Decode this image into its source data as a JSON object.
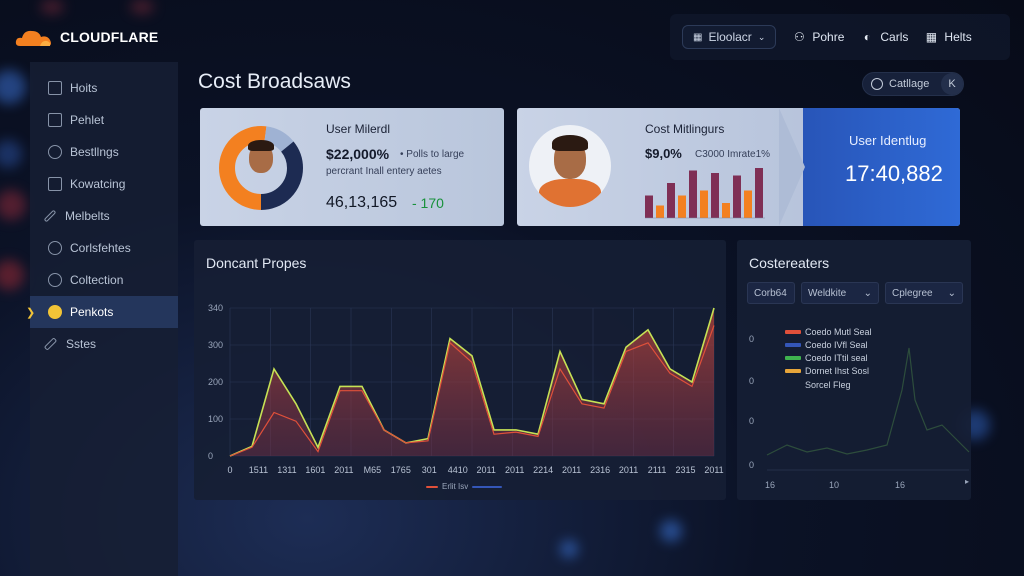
{
  "colors": {
    "accent_orange": "#f38020",
    "accent_blue": "#2f6ad6",
    "sidebar_active_bg": "#24365c",
    "positive_green": "#18913b",
    "line_green": "#c6e255",
    "line_red": "#e0503a"
  },
  "header": {
    "brand": "CLOUDFLARE",
    "dropdown_label": "Eloolacr",
    "links": [
      {
        "label": "Pohre",
        "icon": "person-icon"
      },
      {
        "label": "Carls",
        "icon": "cart-icon"
      },
      {
        "label": "Helts",
        "icon": "grid-icon"
      }
    ]
  },
  "sidebar": {
    "items": [
      {
        "label": "Hoits",
        "icon": "home-icon"
      },
      {
        "label": "Pehlet",
        "icon": "document-icon"
      },
      {
        "label": "Bestllngs",
        "icon": "settings-icon"
      },
      {
        "label": "Kowatcing",
        "icon": "monitor-icon"
      },
      {
        "label": "Melbelts",
        "icon": "pen-icon"
      },
      {
        "label": "Corlsfehtes",
        "icon": "link-icon"
      },
      {
        "label": "Coltection",
        "icon": "globe-icon"
      },
      {
        "label": "Penkots",
        "icon": "star-icon",
        "active": true
      },
      {
        "label": "Sstes",
        "icon": "wrench-icon"
      }
    ]
  },
  "main": {
    "title": "Cost Broadsaws",
    "top_pill": {
      "label": "Catllage",
      "close": "K"
    }
  },
  "card_user": {
    "title": "User Milerdl",
    "big_value": "$22,000%",
    "big_note": "• Polls to large",
    "subtitle": "percrant Inall entery aetes",
    "number": "46,13,165",
    "delta": "- 170",
    "donut": {
      "orange_fraction": 0.52,
      "light_fraction": 0.12,
      "navy_fraction": 0.36
    }
  },
  "card_cost": {
    "title": "Cost Mitlingurs",
    "value": "$9,0%",
    "note": "C3000 Imrate1%",
    "bars": [
      0.45,
      0.25,
      0.7,
      0.45,
      0.95,
      0.55,
      0.9,
      0.3,
      0.85,
      0.55,
      1.0
    ],
    "blue_title": "User Identlug",
    "blue_value": "17:40,882"
  },
  "panel_main": {
    "title": "Doncant Propes",
    "legend_text": "Erlit Isv"
  },
  "chart_data": {
    "type": "area",
    "title": "Doncant Propes",
    "y_ticks": [
      "0",
      "100",
      "200",
      "300",
      "340"
    ],
    "x_ticks": [
      "0",
      "1511",
      "1311",
      "1601",
      "2011",
      "M65",
      "1765",
      "301",
      "4410",
      "2011",
      "2011",
      "2214",
      "2011",
      "2316",
      "2011",
      "2111",
      "2315",
      "2011"
    ],
    "ylim": [
      0,
      340
    ],
    "series": [
      {
        "name": "",
        "color": "#c6e255",
        "values": [
          0,
          22,
          200,
          120,
          20,
          160,
          160,
          60,
          30,
          40,
          270,
          230,
          60,
          60,
          50,
          240,
          130,
          120,
          250,
          290,
          200,
          170,
          340
        ]
      },
      {
        "name": "",
        "color": "#e0503a",
        "values": [
          0,
          20,
          100,
          80,
          10,
          150,
          150,
          60,
          30,
          35,
          260,
          215,
          50,
          55,
          45,
          200,
          120,
          110,
          240,
          260,
          190,
          160,
          300
        ]
      }
    ]
  },
  "panel_side": {
    "title": "Costereaters",
    "controls": [
      "Corb64",
      "Weldkite",
      "Cplegree"
    ],
    "legend": [
      {
        "label": "Coedo Mutl Seal",
        "color": "#e0503a"
      },
      {
        "label": "Coedo IVfl Seal",
        "color": "#3456b8"
      },
      {
        "label": "Coedo ITtil seal",
        "color": "#3fb34f"
      },
      {
        "label": "Dornet Ihst Sosl",
        "color": "#e7a53a"
      }
    ],
    "extra_label": "Sorcel Fleg",
    "y_ticks": [
      "0",
      "0",
      "0",
      "0"
    ],
    "x_ticks": [
      "16",
      "10",
      "16"
    ]
  }
}
